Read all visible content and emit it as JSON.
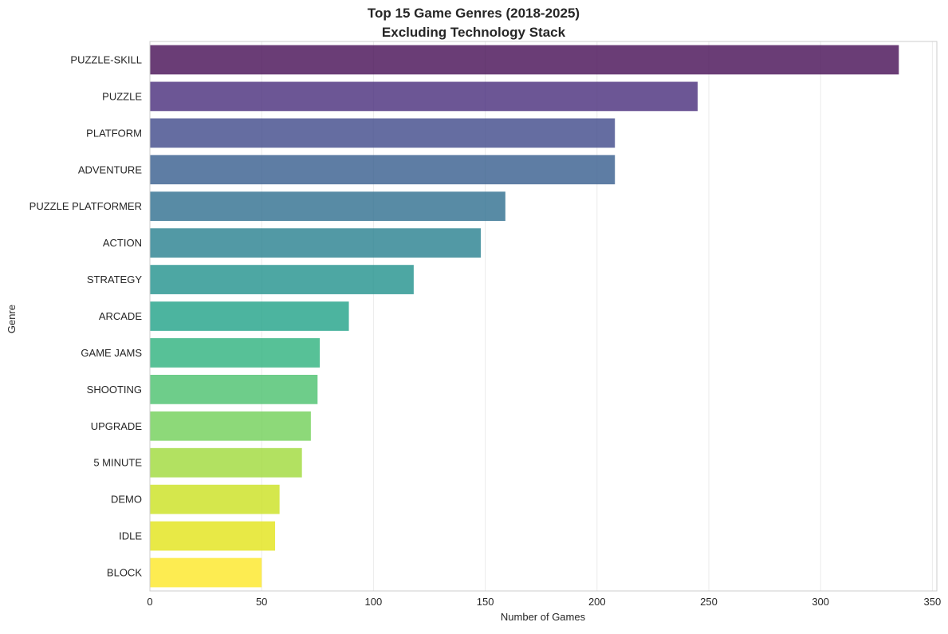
{
  "chart_data": {
    "type": "bar",
    "orientation": "horizontal",
    "title": "Top 15 Game Genres (2018-2025)",
    "subtitle": "Excluding Technology Stack",
    "xlabel": "Number of Games",
    "ylabel": "Genre",
    "xlim": [
      0,
      352
    ],
    "xticks": [
      0,
      50,
      100,
      150,
      200,
      250,
      300,
      350
    ],
    "grid": "vertical",
    "categories": [
      "PUZZLE-SKILL",
      "PUZZLE",
      "PLATFORM",
      "ADVENTURE",
      "PUZZLE PLATFORMER",
      "ACTION",
      "STRATEGY",
      "ARCADE",
      "GAME JAMS",
      "SHOOTING",
      "UPGRADE",
      "5 MINUTE",
      "DEMO",
      "IDLE",
      "BLOCK"
    ],
    "values": [
      335,
      245,
      208,
      208,
      159,
      148,
      118,
      89,
      76,
      75,
      72,
      68,
      58,
      56,
      50
    ],
    "colors": [
      "#440154",
      "#482475",
      "#414487",
      "#355f8d",
      "#2a788e",
      "#21918c",
      "#22a884",
      "#2ab07f",
      "#44bf70",
      "#5ec962",
      "#7ad151",
      "#a5db36",
      "#c2df23",
      "#d2e21b",
      "#fde725"
    ],
    "bar_colors": [
      "#450d54",
      "#482878",
      "#3e4989",
      "#31688e",
      "#26828e",
      "#1f9e89",
      "#35b779",
      "#35b779",
      "#6ece58",
      "#6ece58",
      "#6ece58",
      "#b5de2b",
      "#b5de2b",
      "#dde318",
      "#fde725"
    ]
  }
}
